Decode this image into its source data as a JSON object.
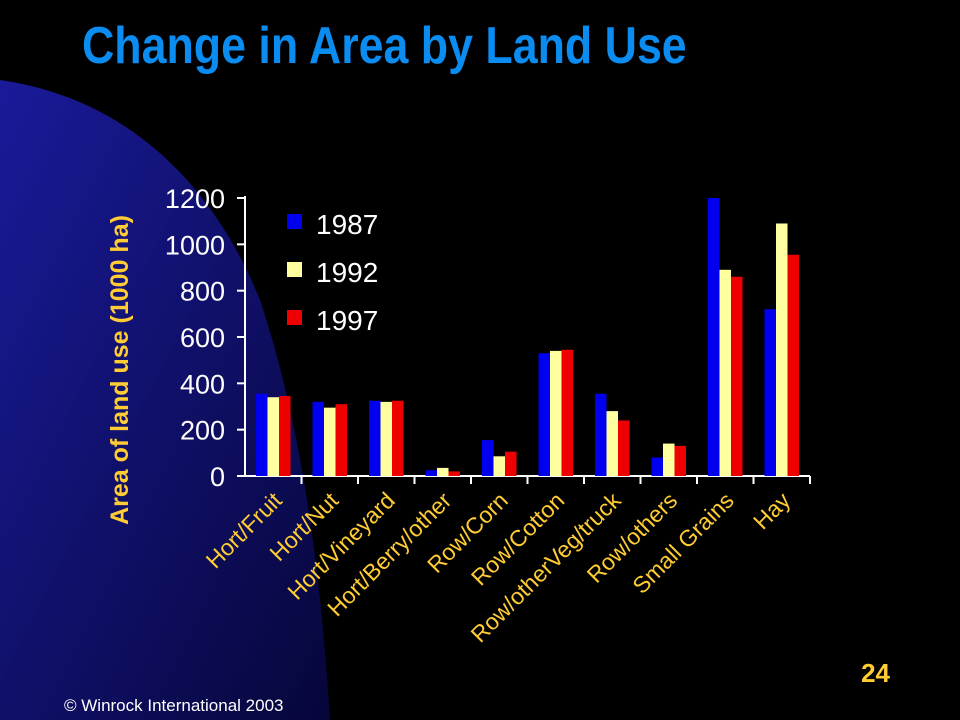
{
  "slide": {
    "title": "Change in Area by Land Use",
    "page_number": "24",
    "copyright": "© Winrock International 2003"
  },
  "colors": {
    "background": "#000000",
    "panel_gradient_start": "#1a1a9a",
    "panel_gradient_end": "#06063a",
    "title": "#0a8cf0",
    "axis_text": "#ffffff",
    "axis_label": "#ffcc33",
    "page_number": "#ffcc33"
  },
  "chart_data": {
    "type": "bar",
    "title": "",
    "xlabel": "",
    "ylabel": "Area of land use (1000 ha)",
    "ylim": [
      0,
      1200
    ],
    "yticks": [
      0,
      200,
      400,
      600,
      800,
      1000,
      1200
    ],
    "grid": false,
    "legend_position": "top-left",
    "categories": [
      "Hort/Fruit",
      "Hort/Nut",
      "Hort/Vineyard",
      "Hort/Berry/other",
      "Row/Corn",
      "Row/Cotton",
      "Row/otherVeg/truck",
      "Row/others",
      "Small Grains",
      "Hay"
    ],
    "series": [
      {
        "name": "1987",
        "color": "#0000ee",
        "values": [
          355,
          320,
          325,
          25,
          155,
          530,
          355,
          80,
          1200,
          720
        ]
      },
      {
        "name": "1992",
        "color": "#ffffa0",
        "values": [
          340,
          295,
          320,
          35,
          85,
          540,
          280,
          140,
          890,
          1090
        ]
      },
      {
        "name": "1997",
        "color": "#ee0000",
        "values": [
          345,
          310,
          325,
          20,
          105,
          545,
          240,
          130,
          860,
          955
        ]
      }
    ]
  }
}
